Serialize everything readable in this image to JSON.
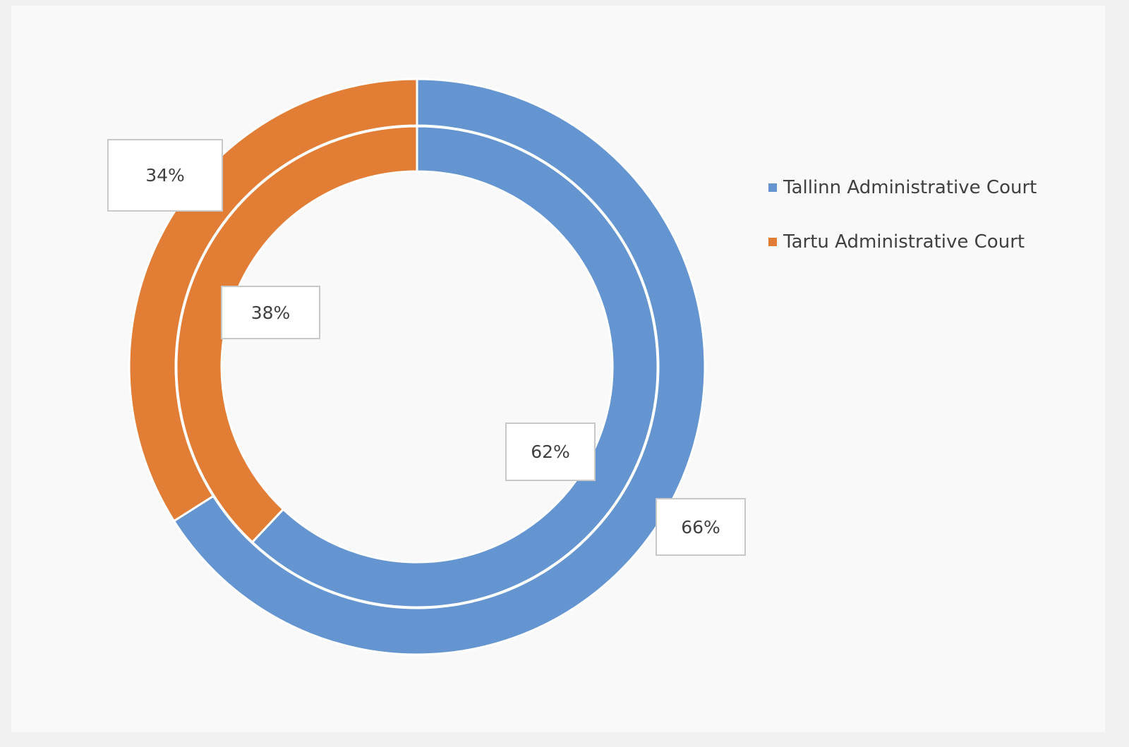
{
  "chart_data": {
    "type": "pie",
    "subtype": "doughnut",
    "title": "",
    "categories": [
      "Tallinn Administrative Court",
      "Tartu Administrative Court"
    ],
    "colors": [
      "#6495d0",
      "#e27d35"
    ],
    "series": [
      {
        "ring": "outer",
        "values": [
          66,
          34
        ],
        "labels": [
          "66%",
          "34%"
        ]
      },
      {
        "ring": "inner",
        "values": [
          62,
          38
        ],
        "labels": [
          "62%",
          "38%"
        ]
      }
    ],
    "legend": {
      "position": "right",
      "items": [
        {
          "label": "Tallinn Administrative Court",
          "color": "#6495d0"
        },
        {
          "label": "Tartu Administrative Court",
          "color": "#e27d35"
        }
      ]
    }
  }
}
